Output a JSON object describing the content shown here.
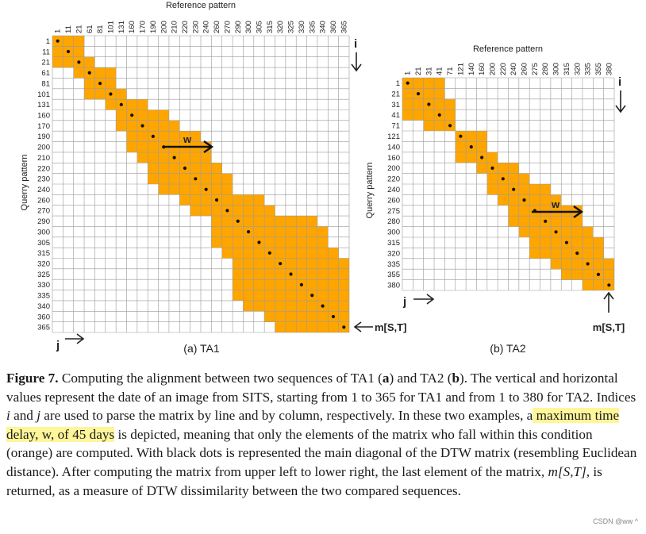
{
  "panels": [
    {
      "id": "ta1",
      "reference_label": "Reference pattern",
      "query_label": "Querry pattern",
      "caption": "(a) TA1",
      "i_label": "i",
      "j_label": "j",
      "end_label": "m[S,T]",
      "w_label": "w",
      "ref_ticks": [
        "1",
        "11",
        "21",
        "61",
        "81",
        "101",
        "131",
        "160",
        "170",
        "190",
        "200",
        "210",
        "220",
        "230",
        "240",
        "260",
        "270",
        "290",
        "300",
        "305",
        "315",
        "320",
        "325",
        "330",
        "335",
        "340",
        "360",
        "365"
      ],
      "query_ticks": [
        "1",
        "11",
        "21",
        "61",
        "81",
        "101",
        "131",
        "160",
        "170",
        "190",
        "200",
        "210",
        "220",
        "230",
        "240",
        "260",
        "270",
        "290",
        "300",
        "305",
        "315",
        "320",
        "325",
        "330",
        "335",
        "340",
        "360",
        "365"
      ]
    },
    {
      "id": "ta2",
      "reference_label": "Reference pattern",
      "query_label": "Querry pattern",
      "caption": "(b) TA2",
      "i_label": "i",
      "j_label": "j",
      "end_label": "m[S,T]",
      "w_label": "w",
      "ref_ticks": [
        "1",
        "21",
        "31",
        "41",
        "71",
        "121",
        "140",
        "160",
        "200",
        "220",
        "240",
        "260",
        "275",
        "280",
        "300",
        "315",
        "320",
        "335",
        "355",
        "380"
      ],
      "query_ticks": [
        "1",
        "21",
        "31",
        "41",
        "71",
        "121",
        "140",
        "160",
        "200",
        "220",
        "240",
        "260",
        "275",
        "280",
        "300",
        "315",
        "320",
        "335",
        "355",
        "380"
      ]
    }
  ],
  "colors": {
    "orange": "#ffa500",
    "grid": "#9a9a9a",
    "dot": "#111111"
  },
  "caption": {
    "label": "Figure 7.",
    "seg1": " Computing the alignment between two sequences of TA1 (",
    "a": "a",
    "seg2": ") and TA2 (",
    "b": "b",
    "seg3": "). The vertical and horizontal values represent the date of an image from SITS, starting from 1 to 365 for TA1 and from 1 to 380 for TA2. Indices ",
    "i": "i",
    "seg4": " and ",
    "j": "j",
    "seg5": " are used to parse the matrix by line and by column, respectively. In these two examples, a",
    "highlight": " maximum time delay, w, of 45 days",
    "seg6": " is depicted, meaning that only the elements of the matrix who fall within this condition (orange) are computed. With black dots is represented the main diagonal of the DTW matrix (resembling Euclidean distance). After computing the matrix from upper left to lower right, the last element of the matrix, ",
    "mst": "m[S,T]",
    "seg7": ", is returned, as a measure of DTW dissimilarity between the two compared sequences."
  },
  "watermark": "CSDN @ww ^"
}
